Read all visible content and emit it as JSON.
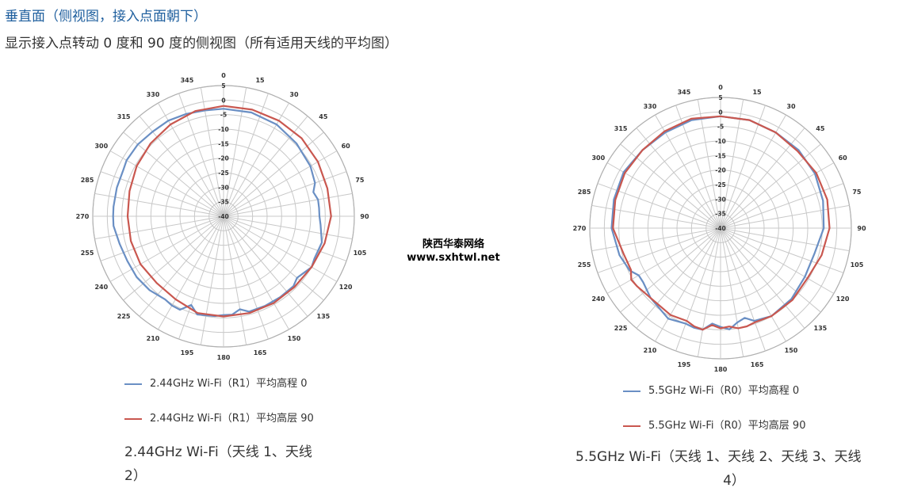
{
  "heading": "垂直面（侧视图，接入点面朝下）",
  "subheading": "显示接入点转动 0 度和 90 度的侧视图（所有适用天线的平均图）",
  "watermark": {
    "line1": "陕西华泰网络",
    "line2": "www.sxhtwl.net"
  },
  "colors": {
    "grid": "#c8c8c8",
    "series_blue": "#6a8fc4",
    "series_red": "#c9574f",
    "heading": "#1f5f9e"
  },
  "chart_data": [
    {
      "type": "polar-line",
      "angle_ticks": [
        "0",
        "15",
        "30",
        "45",
        "60",
        "75",
        "90",
        "105",
        "120",
        "135",
        "150",
        "165",
        "180",
        "195",
        "210",
        "225",
        "240",
        "255",
        "270",
        "285",
        "300",
        "315",
        "330",
        "345"
      ],
      "radial_ticks": [
        "5",
        "0",
        "-5",
        "-10",
        "-15",
        "-20",
        "-25",
        "-30",
        "-35",
        "-40"
      ],
      "rlim": [
        -40,
        5
      ],
      "series": [
        {
          "name": "2.44GHz Wi-Fi（R1）平均高程 0",
          "color": "#6a8fc4",
          "angles": [
            0,
            15,
            30,
            45,
            60,
            70,
            75,
            80,
            85,
            90,
            95,
            105,
            115,
            120,
            130,
            135,
            145,
            155,
            165,
            170,
            175,
            180,
            185,
            195,
            200,
            205,
            210,
            215,
            225,
            235,
            245,
            255,
            265,
            270,
            275,
            285,
            295,
            300,
            310,
            320,
            330,
            340,
            350,
            360
          ],
          "values": [
            -3,
            -3,
            -3.5,
            -4.5,
            -5.5,
            -6.5,
            -8,
            -7,
            -7,
            -7,
            -6.5,
            -5,
            -5.5,
            -5,
            -7,
            -6,
            -6,
            -6,
            -6,
            -7.5,
            -6,
            -6,
            -5.5,
            -5,
            -7.5,
            -4.5,
            -4.5,
            -5,
            -4,
            -3.5,
            -3.5,
            -3,
            -2,
            -2,
            -2,
            -2,
            -2,
            -1.5,
            -1.5,
            -2,
            -2,
            -2.5,
            -3,
            -3
          ]
        },
        {
          "name": "2.44GHz Wi-Fi（R1）平均高层 90",
          "color": "#c9574f",
          "angles": [
            0,
            15,
            30,
            45,
            60,
            75,
            90,
            105,
            120,
            135,
            150,
            165,
            180,
            195,
            210,
            225,
            240,
            255,
            270,
            285,
            300,
            315,
            330,
            345,
            360
          ],
          "values": [
            -2,
            -2,
            -2,
            -2,
            -2.5,
            -3,
            -3,
            -4,
            -5,
            -5.5,
            -5.5,
            -5.5,
            -5.5,
            -5.5,
            -7,
            -7.5,
            -7,
            -7,
            -7,
            -6.5,
            -5.5,
            -4.5,
            -3.5,
            -2.5,
            -2
          ]
        }
      ]
    },
    {
      "type": "polar-line",
      "angle_ticks": [
        "0",
        "15",
        "30",
        "45",
        "60",
        "75",
        "90",
        "105",
        "120",
        "135",
        "150",
        "165",
        "180",
        "195",
        "210",
        "225",
        "240",
        "255",
        "270",
        "285",
        "300",
        "315",
        "330",
        "345"
      ],
      "radial_ticks": [
        "5",
        "0",
        "-5",
        "-10",
        "-15",
        "-20",
        "-25",
        "-30",
        "-35",
        "-40"
      ],
      "rlim": [
        -40,
        5
      ],
      "series": [
        {
          "name": "5.5GHz Wi-Fi（R0）平均高程 0",
          "color": "#6a8fc4",
          "angles": [
            0,
            15,
            30,
            45,
            60,
            75,
            90,
            105,
            120,
            135,
            150,
            160,
            165,
            170,
            175,
            180,
            185,
            190,
            195,
            200,
            210,
            225,
            235,
            240,
            245,
            255,
            270,
            285,
            300,
            315,
            330,
            345,
            360
          ],
          "values": [
            -1.5,
            -1.5,
            -2,
            -2,
            -2.5,
            -3.5,
            -4.5,
            -6.5,
            -6.5,
            -5.5,
            -5,
            -6,
            -8,
            -7,
            -5,
            -6,
            -7,
            -4.5,
            -4.5,
            -5,
            -4,
            -6,
            -7.5,
            -7.5,
            -5.5,
            -4,
            -2.5,
            -2,
            -1.5,
            -2,
            -2,
            -1.5,
            -1.5
          ]
        },
        {
          "name": "5.5GHz Wi-Fi（R0）平均高层 90",
          "color": "#c9574f",
          "angles": [
            0,
            15,
            30,
            45,
            60,
            75,
            90,
            105,
            120,
            135,
            150,
            160,
            165,
            170,
            175,
            180,
            185,
            190,
            195,
            200,
            210,
            225,
            235,
            240,
            245,
            255,
            270,
            285,
            300,
            315,
            330,
            345,
            360
          ],
          "values": [
            -1.5,
            -1.5,
            -2,
            -2.5,
            -2,
            -2,
            -2.5,
            -4,
            -5.5,
            -5,
            -5,
            -5.5,
            -5,
            -5,
            -6,
            -5.5,
            -6.5,
            -4.5,
            -5,
            -6,
            -5.5,
            -6,
            -5,
            -4.5,
            -6,
            -5.5,
            -3,
            -2.5,
            -2,
            -2,
            -1.5,
            -1,
            -1.5
          ]
        }
      ]
    }
  ],
  "legend_left": [
    "2.44GHz Wi-Fi（R1）平均高程 0",
    "2.44GHz Wi-Fi（R1）平均高层 90"
  ],
  "legend_right": [
    "5.5GHz Wi-Fi（R0）平均高程 0",
    "5.5GHz Wi-Fi（R0）平均高层 90"
  ],
  "caption_left": {
    "line1": "2.44GHz Wi-Fi（天线 1、天线",
    "line2": "2）"
  },
  "caption_right": {
    "line1": "5.5GHz Wi-Fi（天线 1、天线 2、天线 3、天线",
    "line2": "4）"
  }
}
